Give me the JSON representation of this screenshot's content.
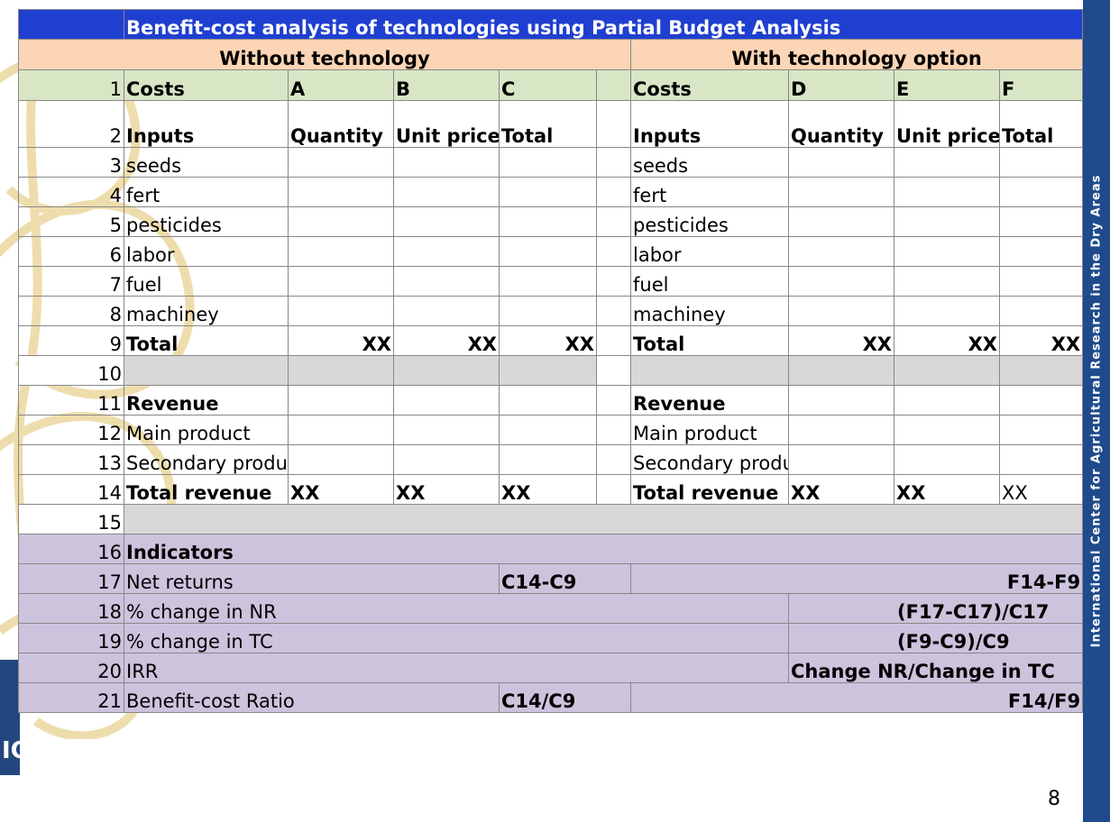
{
  "title": "Benefit-cost analysis of technologies using Partial Budget Analysis",
  "sections": {
    "without": "Without technology",
    "with": "With technology option"
  },
  "columns": {
    "costs": "Costs",
    "a": "A",
    "b": "B",
    "c": "C",
    "d": "D",
    "e": "E",
    "f": "F"
  },
  "input_header": {
    "inputs": "Inputs",
    "quantity": "Quantity",
    "unit_price": "Unit price",
    "total": "Total"
  },
  "rows": {
    "r1": "1",
    "r2": "2",
    "r3": "3",
    "r4": "4",
    "r5": "5",
    "r6": "6",
    "r7": "7",
    "r8": "8",
    "r9": "9",
    "r10": "10",
    "r11": "11",
    "r12": "12",
    "r13": "13",
    "r14": "14",
    "r15": "15",
    "r16": "16",
    "r17": "17",
    "r18": "18",
    "r19": "19",
    "r20": "20",
    "r21": "21"
  },
  "inputs": [
    "seeds",
    "fert",
    "pesticides",
    "labor",
    "fuel",
    "machiney"
  ],
  "total_label": "Total",
  "xx": "XX",
  "revenue": {
    "label": "Revenue",
    "main": "Main product",
    "secondary": "Secondary product",
    "total": "Total revenue"
  },
  "indicators": {
    "label": "Indicators",
    "net_returns": "Net returns",
    "net_returns_without": "C14-C9",
    "net_returns_with": "F14-F9",
    "pct_nr": "% change in NR",
    "pct_nr_formula": "(F17-C17)/C17",
    "pct_tc": "% change in TC",
    "pct_tc_formula": "(F9-C9)/C9",
    "irr": "IRR",
    "irr_formula": "Change NR/Change in TC",
    "bcr": "Benefit-cost Ratio",
    "bcr_without": "C14/C9",
    "bcr_with": "F14/F9"
  },
  "sidebar_text": "International Center for Agricultural Research in the Dry Areas",
  "logo_fragment": "IC",
  "page_number": "8",
  "colors": {
    "title_bg": "#1f3fd0",
    "section_bg": "#fbd5b5",
    "column_header_bg": "#d8e6c6",
    "separator_bg": "#d8d8d8",
    "indicator_bg": "#cdc3dd",
    "sidebar_bg": "#1f4b8c"
  }
}
